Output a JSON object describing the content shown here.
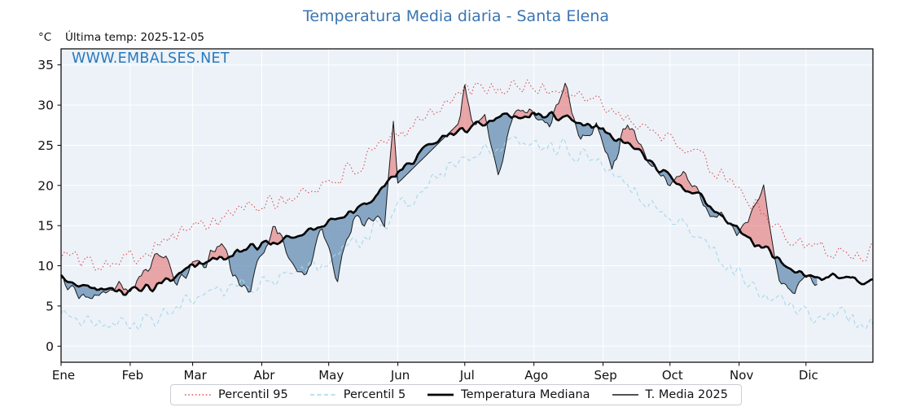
{
  "header": {
    "unit": "°C",
    "last_temp": "Última temp: 2025-12-05",
    "watermark": "WWW.EMBALSES.NET",
    "title_color": "#3b75b0",
    "watermark_color": "#2779bd"
  },
  "chart_data": {
    "type": "line",
    "title": "Temperatura Media diaria - Santa Elena",
    "xlabel": "",
    "ylabel": "°C",
    "ylim": [
      -2,
      37
    ],
    "yticks": [
      0,
      5,
      10,
      15,
      20,
      25,
      30,
      35
    ],
    "days_in_year": 365,
    "grid": true,
    "legend_position": "bottom",
    "plot_bg": "#edf2f8",
    "grid_color": "#ffffff",
    "axis_color": "#000000",
    "months": [
      {
        "label": "Ene",
        "day": 0
      },
      {
        "label": "Feb",
        "day": 31
      },
      {
        "label": "Mar",
        "day": 59
      },
      {
        "label": "Abr",
        "day": 90
      },
      {
        "label": "May",
        "day": 120
      },
      {
        "label": "Jun",
        "day": 151
      },
      {
        "label": "Jul",
        "day": 181
      },
      {
        "label": "Ago",
        "day": 212
      },
      {
        "label": "Sep",
        "day": 243
      },
      {
        "label": "Oct",
        "day": 273
      },
      {
        "label": "Nov",
        "day": 304
      },
      {
        "label": "Dic",
        "day": 334
      }
    ],
    "fills": {
      "above_color": "rgba(226,102,102,0.55)",
      "below_color": "rgba(78,124,168,0.65)",
      "upper": "y2025",
      "baseline": "median"
    },
    "series": [
      {
        "id": "p95",
        "name": "Percentil 95",
        "color": "#d94f4f",
        "dash": "1.5 2.8",
        "width": 1.1,
        "noise": 1.6,
        "seed": 101,
        "control": {
          "days": [
            0,
            15,
            31,
            45,
            59,
            74,
            90,
            105,
            120,
            135,
            151,
            166,
            181,
            196,
            212,
            227,
            243,
            258,
            273,
            288,
            304,
            319,
            334,
            349,
            364
          ],
          "values": [
            11.5,
            10.5,
            11.0,
            13.0,
            14.8,
            16.3,
            17.5,
            18.5,
            20.5,
            22.5,
            26.5,
            29.5,
            31.5,
            32.0,
            32.3,
            31.8,
            30.0,
            28.0,
            25.5,
            23.0,
            19.5,
            15.5,
            12.5,
            11.8,
            11.5
          ]
        }
      },
      {
        "id": "p5",
        "name": "Percentil 5",
        "color": "#a7d7e8",
        "dash": "5 3.5",
        "width": 1.1,
        "noise": 1.6,
        "seed": 202,
        "control": {
          "days": [
            0,
            15,
            31,
            45,
            59,
            74,
            90,
            105,
            120,
            135,
            151,
            166,
            181,
            196,
            212,
            227,
            243,
            258,
            273,
            288,
            304,
            319,
            334,
            349,
            364
          ],
          "values": [
            4.5,
            3.0,
            2.5,
            3.5,
            5.5,
            6.8,
            8.0,
            9.5,
            11.0,
            13.0,
            16.5,
            20.5,
            23.5,
            24.5,
            25.0,
            24.5,
            22.5,
            19.5,
            16.0,
            13.0,
            9.0,
            6.0,
            4.0,
            3.5,
            3.2
          ]
        }
      },
      {
        "id": "median",
        "name": "Temperatura Mediana",
        "color": "#000000",
        "dash": "",
        "width": 2.6,
        "noise": 0.7,
        "seed": 303,
        "control": {
          "days": [
            0,
            15,
            31,
            45,
            59,
            74,
            90,
            105,
            120,
            135,
            151,
            166,
            181,
            196,
            212,
            227,
            243,
            258,
            273,
            288,
            304,
            319,
            334,
            349,
            364
          ],
          "values": [
            8.3,
            7.2,
            6.8,
            7.6,
            9.8,
            11.2,
            12.6,
            13.8,
            15.2,
            17.3,
            21.5,
            25.0,
            27.0,
            28.3,
            28.8,
            28.5,
            27.0,
            24.3,
            21.0,
            18.3,
            14.5,
            11.3,
            9.0,
            8.3,
            8.0
          ]
        }
      },
      {
        "id": "y2025",
        "name": "T. Media 2025",
        "color": "#1a1a1a",
        "dash": "",
        "width": 1,
        "noise": 1.4,
        "seed": 404,
        "end_day": 339,
        "gaps": [
          {
            "from": 151,
            "to": 178
          }
        ],
        "control": {
          "days": [
            0,
            8,
            16,
            24,
            31,
            38,
            45,
            52,
            59,
            66,
            72,
            78,
            85,
            90,
            96,
            103,
            110,
            117,
            124,
            131,
            138,
            145,
            147,
            149,
            151,
            178,
            181,
            184,
            190,
            196,
            203,
            212,
            219,
            226,
            233,
            240,
            247,
            254,
            261,
            268,
            273,
            280,
            287,
            294,
            301,
            308,
            315,
            322,
            329,
            334,
            339
          ],
          "values": [
            8.5,
            6.5,
            5.8,
            7.5,
            7.0,
            9.0,
            11.5,
            8.0,
            9.5,
            11.0,
            13.5,
            8.5,
            6.5,
            12.0,
            15.5,
            11.0,
            8.5,
            14.0,
            9.0,
            15.5,
            16.0,
            15.0,
            21.0,
            28.5,
            19.5,
            28.0,
            31.5,
            27.5,
            28.0,
            21.5,
            28.5,
            29.5,
            27.0,
            33.0,
            25.5,
            27.5,
            21.5,
            28.5,
            24.0,
            21.5,
            20.5,
            22.0,
            18.0,
            16.0,
            14.5,
            15.0,
            19.5,
            8.0,
            6.0,
            8.5,
            8.0
          ]
        }
      }
    ]
  }
}
